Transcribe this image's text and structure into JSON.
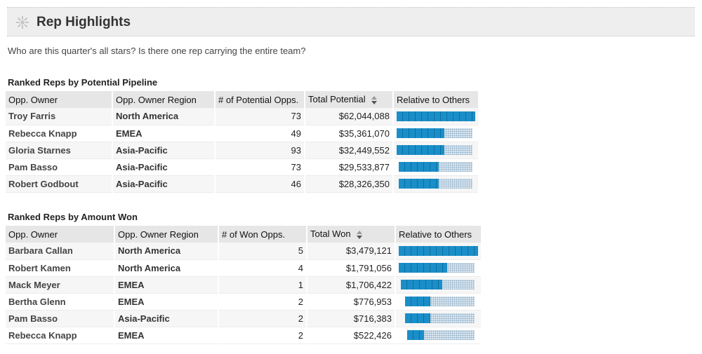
{
  "header": {
    "title": "Rep Highlights",
    "icon": "burst-icon"
  },
  "subtitle": "Who are this quarter's all stars? Is there one rep carrying the entire team?",
  "colors": {
    "bar": "#1a8ec8",
    "bar_track": "#dbe6ef",
    "header_bg": "#eeeeee"
  },
  "pipeline": {
    "caption": "Ranked Reps by Potential Pipeline",
    "columns": [
      "Opp. Owner",
      "Opp. Owner Region",
      "# of Potential Opps.",
      "Total Potential",
      "Relative to Others"
    ],
    "rows": [
      {
        "owner": "Troy Farris",
        "region": "North America",
        "count": "73",
        "total": "$62,044,088",
        "relative": 1.0,
        "empty": 0.0
      },
      {
        "owner": "Rebecca Knapp",
        "region": "EMEA",
        "count": "49",
        "total": "$35,361,070",
        "relative": 0.63,
        "empty": 0.0
      },
      {
        "owner": "Gloria Starnes",
        "region": "Asia-Pacific",
        "count": "93",
        "total": "$32,449,552",
        "relative": 0.63,
        "empty": 0.0
      },
      {
        "owner": "Pam Basso",
        "region": "Asia-Pacific",
        "count": "73",
        "total": "$29,533,877",
        "relative": 0.53,
        "empty": 0.03
      },
      {
        "owner": "Robert Godbout",
        "region": "Asia-Pacific",
        "count": "46",
        "total": "$28,326,350",
        "relative": 0.53,
        "empty": 0.03
      }
    ]
  },
  "won": {
    "caption": "Ranked Reps by Amount Won",
    "columns": [
      "Opp. Owner",
      "Opp. Owner Region",
      "# of Won Opps.",
      "Total Won",
      "Relative to Others"
    ],
    "rows": [
      {
        "owner": "Barbara Callan",
        "region": "North America",
        "count": "5",
        "total": "$3,479,121",
        "relative": 1.0,
        "empty": 0.0
      },
      {
        "owner": "Robert Kamen",
        "region": "North America",
        "count": "4",
        "total": "$1,791,056",
        "relative": 0.64,
        "empty": 0.0
      },
      {
        "owner": "Mack Meyer",
        "region": "EMEA",
        "count": "1",
        "total": "$1,706,422",
        "relative": 0.54,
        "empty": 0.03
      },
      {
        "owner": "Bertha Glenn",
        "region": "EMEA",
        "count": "2",
        "total": "$776,953",
        "relative": 0.33,
        "empty": 0.08
      },
      {
        "owner": "Pam Basso",
        "region": "Asia-Pacific",
        "count": "2",
        "total": "$716,383",
        "relative": 0.33,
        "empty": 0.08
      },
      {
        "owner": "Rebecca Knapp",
        "region": "EMEA",
        "count": "2",
        "total": "$522,426",
        "relative": 0.22,
        "empty": 0.11
      }
    ]
  }
}
